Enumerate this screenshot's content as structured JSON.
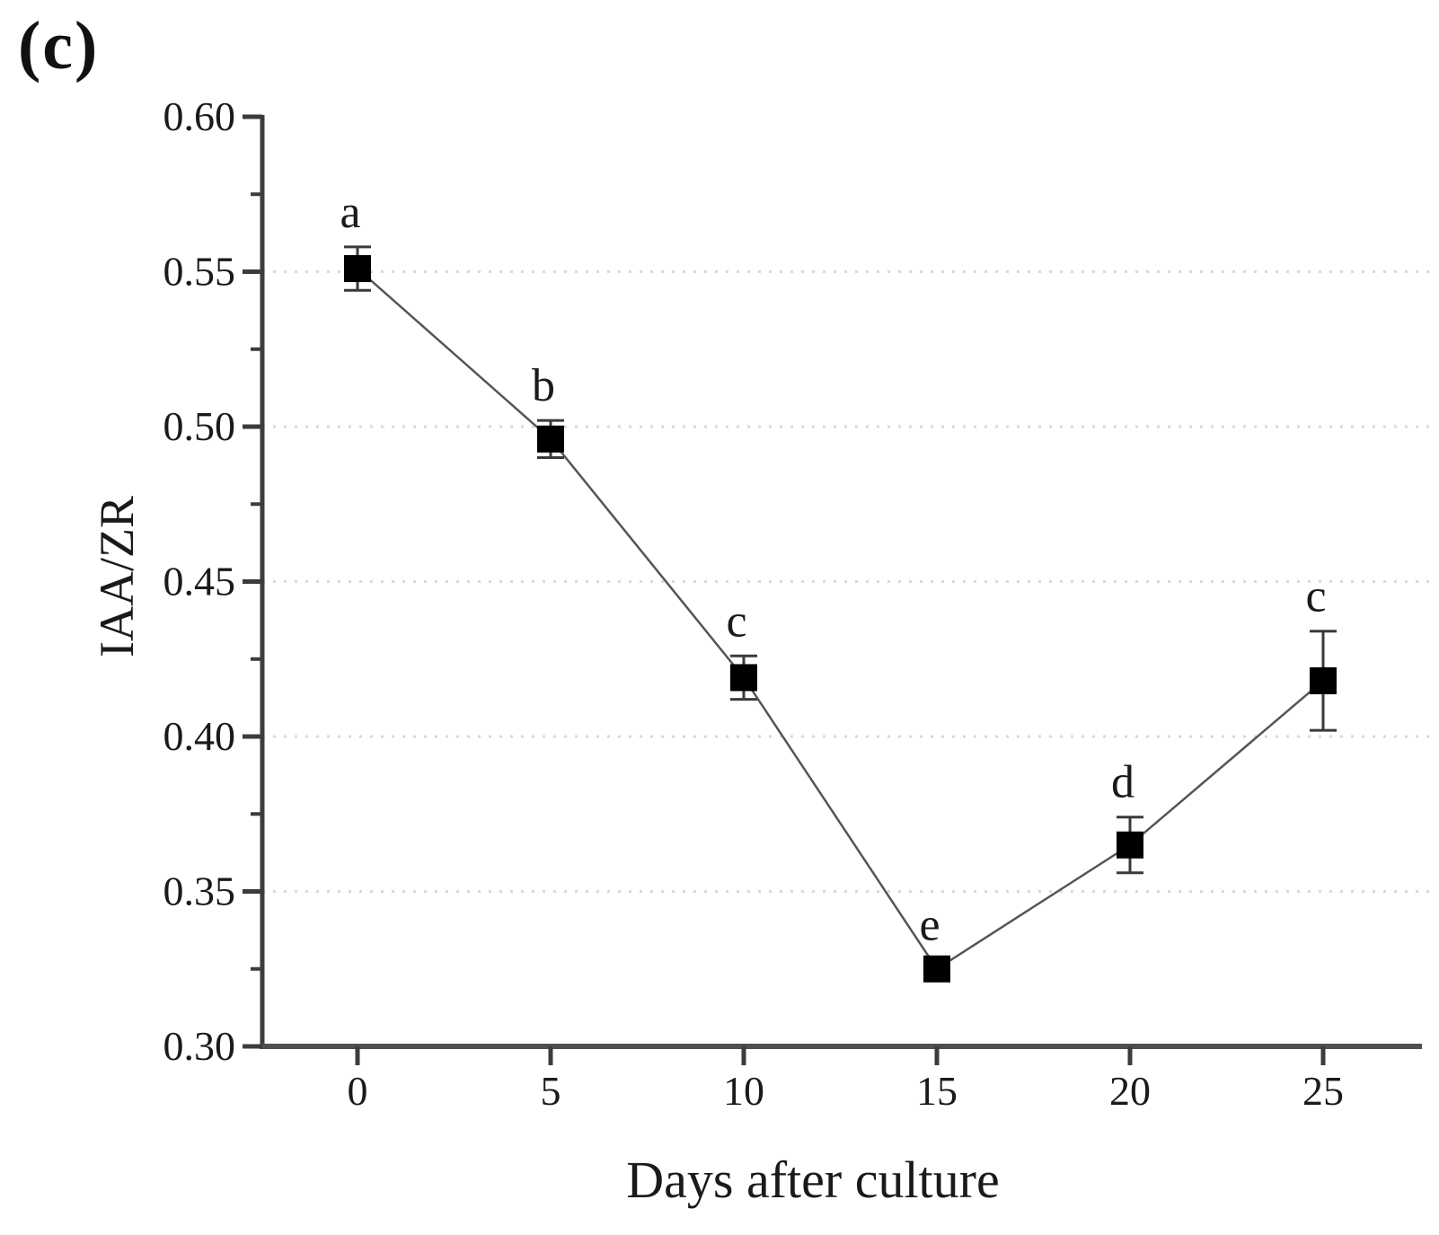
{
  "figure": {
    "panel_label": "(c)"
  },
  "chart_data": {
    "type": "line",
    "title": "",
    "xlabel": "Days after culture",
    "ylabel": "IAA/ZR",
    "x": [
      0,
      5,
      10,
      15,
      20,
      25
    ],
    "series": [
      {
        "name": "IAA/ZR",
        "values": [
          0.551,
          0.496,
          0.419,
          0.325,
          0.365,
          0.418
        ],
        "errors": [
          0.007,
          0.006,
          0.007,
          0.003,
          0.009,
          0.016
        ],
        "point_labels": [
          "a",
          "b",
          "c",
          "e",
          "d",
          "c"
        ]
      }
    ],
    "xticks": [
      "0",
      "5",
      "10",
      "15",
      "20",
      "25"
    ],
    "yticks": [
      0.3,
      0.35,
      0.4,
      0.45,
      0.5,
      0.55,
      0.6
    ],
    "ytick_labels": [
      "0.30",
      "0.35",
      "0.40",
      "0.45",
      "0.50",
      "0.55",
      "0.60"
    ],
    "xlim": [
      -2.45,
      27.55
    ],
    "ylim": [
      0.3,
      0.6
    ],
    "y_minor_step": 0.025,
    "grid": "horizontal dotted at major y ticks (0.35-0.55)",
    "legend_position": "none",
    "marker": "filled-black-square",
    "colors": {
      "marker": "#000000",
      "line": "#555555",
      "error_bar": "#3a3a3a",
      "grid": "#d9d9d9",
      "axis": "#3c3c3c",
      "text": "#1a1a1a"
    }
  }
}
